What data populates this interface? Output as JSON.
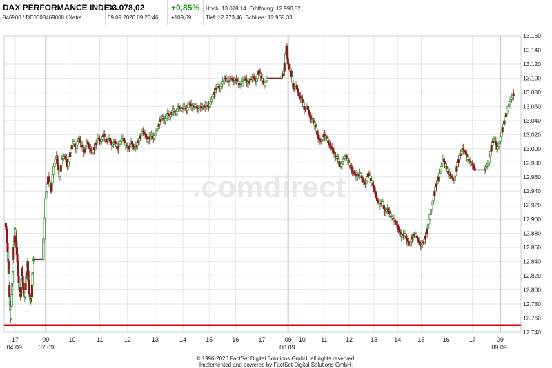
{
  "header": {
    "name": "DAX PERFORMANCE INDEX",
    "ids": "846900 / DE0008469008 / Xetra",
    "price": "13.078,02",
    "datetime": "09.09.2020 09:23:46",
    "change_pct": "+0,85%",
    "change_abs": "+109,69",
    "high_label": "Hoch:",
    "high": "13.078,14",
    "open_label": "Eröffnung:",
    "open": "12.990,52",
    "low_label": "Tief:",
    "low": "12.973,46",
    "close_label": "Schluss:",
    "close": "12.968,33"
  },
  "watermark": ".comdirect",
  "footer": {
    "line1": "© 1996-2020 FactSet Digital Solutions GmbH, all rights reserved.",
    "line2": "Implemented and powered by FactSet Digital Solutions GmbH."
  },
  "colors": {
    "up": "#2e8b2e",
    "down": "#8b1a1a",
    "baseline": "#e00000",
    "grid": "#e6e6e6",
    "watermark_light": "#f3e6b8",
    "watermark_dark": "#d8d8d8"
  },
  "chart_data": {
    "type": "candlestick",
    "ylim": [
      12740,
      13160
    ],
    "y_ticks": [
      12740,
      12760,
      12780,
      12800,
      12820,
      12840,
      12860,
      12880,
      12900,
      12920,
      12940,
      12960,
      12980,
      13000,
      13020,
      13040,
      13060,
      13080,
      13100,
      13120,
      13140,
      13160
    ],
    "y_tick_labels": [
      "12.740",
      "12.760",
      "12.780",
      "12.800",
      "12.820",
      "12.840",
      "12.860",
      "12.880",
      "12.900",
      "12.920",
      "12.940",
      "12.960",
      "12.980",
      "13.000",
      "13.020",
      "13.040",
      "13.060",
      "13.080",
      "13.100",
      "13.120",
      "13.140",
      "13.160"
    ],
    "x_ticks": [
      {
        "label": "17",
        "pos": 0.0
      },
      {
        "label": "09",
        "pos": 1.1
      },
      {
        "label": "10",
        "pos": 2.05
      },
      {
        "label": "11",
        "pos": 3.05
      },
      {
        "label": "12",
        "pos": 4.05
      },
      {
        "label": "13",
        "pos": 5.05
      },
      {
        "label": "14",
        "pos": 6.05
      },
      {
        "label": "15",
        "pos": 7.0
      },
      {
        "label": "16",
        "pos": 7.95
      },
      {
        "label": "17",
        "pos": 8.9
      },
      {
        "label": "09",
        "pos": 9.85
      },
      {
        "label": "10",
        "pos": 10.35
      },
      {
        "label": "11",
        "pos": 11.15
      },
      {
        "label": "12",
        "pos": 12.05
      },
      {
        "label": "13",
        "pos": 12.95
      },
      {
        "label": "14",
        "pos": 13.8
      },
      {
        "label": "15",
        "pos": 14.65
      },
      {
        "label": "16",
        "pos": 15.55
      },
      {
        "label": "17",
        "pos": 16.5
      },
      {
        "label": "09",
        "pos": 17.5
      }
    ],
    "date_labels": [
      {
        "label": "04.09.",
        "pos": 0.0
      },
      {
        "label": "07.09.",
        "pos": 1.15
      },
      {
        "label": "08.09.",
        "pos": 9.85
      },
      {
        "label": "09.09.",
        "pos": 17.5
      }
    ],
    "session_separators": [
      1.1,
      9.85,
      17.5
    ],
    "x_range": [
      -0.35,
      18.2
    ],
    "path": [
      [
        -0.35,
        12895
      ],
      [
        -0.3,
        12880
      ],
      [
        -0.25,
        12840
      ],
      [
        -0.2,
        12790
      ],
      [
        -0.15,
        12760
      ],
      [
        -0.1,
        12810
      ],
      [
        -0.05,
        12860
      ],
      [
        0.0,
        12885
      ],
      [
        0.05,
        12860
      ],
      [
        0.1,
        12830
      ],
      [
        0.15,
        12800
      ],
      [
        0.2,
        12790
      ],
      [
        0.25,
        12830
      ],
      [
        0.3,
        12800
      ],
      [
        0.35,
        12790
      ],
      [
        0.4,
        12820
      ],
      [
        0.45,
        12840
      ],
      [
        0.5,
        12800
      ],
      [
        0.55,
        12785
      ],
      [
        0.6,
        12790
      ],
      [
        0.65,
        12842
      ],
      [
        0.7,
        12843
      ],
      [
        0.8,
        12843
      ],
      [
        0.9,
        12843
      ],
      [
        1.0,
        12843
      ],
      [
        1.1,
        12930
      ],
      [
        1.2,
        12960
      ],
      [
        1.3,
        12940
      ],
      [
        1.4,
        12975
      ],
      [
        1.5,
        12990
      ],
      [
        1.6,
        12960
      ],
      [
        1.7,
        12985
      ],
      [
        1.8,
        12990
      ],
      [
        1.9,
        12975
      ],
      [
        2.0,
        12995
      ],
      [
        2.1,
        13010
      ],
      [
        2.2,
        13000
      ],
      [
        2.3,
        13015
      ],
      [
        2.4,
        13005
      ],
      [
        2.5,
        12995
      ],
      [
        2.6,
        13010
      ],
      [
        2.7,
        13000
      ],
      [
        2.8,
        12995
      ],
      [
        2.9,
        13005
      ],
      [
        3.0,
        13015
      ],
      [
        3.1,
        13010
      ],
      [
        3.2,
        13020
      ],
      [
        3.3,
        13010
      ],
      [
        3.4,
        13015
      ],
      [
        3.5,
        13005
      ],
      [
        3.6,
        13010
      ],
      [
        3.7,
        13000
      ],
      [
        3.8,
        13010
      ],
      [
        3.9,
        13015
      ],
      [
        4.0,
        13005
      ],
      [
        4.1,
        13000
      ],
      [
        4.2,
        13010
      ],
      [
        4.3,
        13000
      ],
      [
        4.4,
        13005
      ],
      [
        4.5,
        13015
      ],
      [
        4.6,
        13025
      ],
      [
        4.7,
        13020
      ],
      [
        4.8,
        13010
      ],
      [
        4.9,
        13020
      ],
      [
        5.0,
        13015
      ],
      [
        5.1,
        13025
      ],
      [
        5.2,
        13035
      ],
      [
        5.3,
        13045
      ],
      [
        5.4,
        13040
      ],
      [
        5.5,
        13050
      ],
      [
        5.6,
        13045
      ],
      [
        5.7,
        13055
      ],
      [
        5.8,
        13050
      ],
      [
        5.9,
        13060
      ],
      [
        6.0,
        13055
      ],
      [
        6.1,
        13060
      ],
      [
        6.2,
        13055
      ],
      [
        6.3,
        13065
      ],
      [
        6.4,
        13058
      ],
      [
        6.5,
        13062
      ],
      [
        6.6,
        13055
      ],
      [
        6.7,
        13060
      ],
      [
        6.8,
        13058
      ],
      [
        6.9,
        13062
      ],
      [
        7.0,
        13060
      ],
      [
        7.1,
        13070
      ],
      [
        7.2,
        13080
      ],
      [
        7.3,
        13090
      ],
      [
        7.4,
        13085
      ],
      [
        7.5,
        13095
      ],
      [
        7.6,
        13100
      ],
      [
        7.7,
        13095
      ],
      [
        7.8,
        13100
      ],
      [
        7.9,
        13095
      ],
      [
        8.0,
        13098
      ],
      [
        8.1,
        13090
      ],
      [
        8.2,
        13095
      ],
      [
        8.3,
        13100
      ],
      [
        8.4,
        13092
      ],
      [
        8.5,
        13098
      ],
      [
        8.6,
        13102
      ],
      [
        8.7,
        13095
      ],
      [
        8.8,
        13110
      ],
      [
        8.9,
        13100
      ],
      [
        9.0,
        13090
      ],
      [
        9.1,
        13100
      ],
      [
        9.2,
        13100
      ],
      [
        9.3,
        13100
      ],
      [
        9.4,
        13100
      ],
      [
        9.5,
        13100
      ],
      [
        9.6,
        13100
      ],
      [
        9.7,
        13110
      ],
      [
        9.8,
        13145
      ],
      [
        9.85,
        13120
      ],
      [
        9.95,
        13110
      ],
      [
        10.05,
        13085
      ],
      [
        10.15,
        13090
      ],
      [
        10.25,
        13075
      ],
      [
        10.35,
        13070
      ],
      [
        10.45,
        13055
      ],
      [
        10.55,
        13060
      ],
      [
        10.65,
        13045
      ],
      [
        10.75,
        13040
      ],
      [
        10.85,
        13030
      ],
      [
        10.95,
        13015
      ],
      [
        11.05,
        13010
      ],
      [
        11.15,
        13020
      ],
      [
        11.25,
        13015
      ],
      [
        11.35,
        13005
      ],
      [
        11.45,
        13000
      ],
      [
        11.55,
        12990
      ],
      [
        11.65,
        12985
      ],
      [
        11.75,
        12975
      ],
      [
        11.85,
        12985
      ],
      [
        11.95,
        12990
      ],
      [
        12.05,
        12980
      ],
      [
        12.15,
        12970
      ],
      [
        12.25,
        12965
      ],
      [
        12.35,
        12960
      ],
      [
        12.45,
        12965
      ],
      [
        12.55,
        12955
      ],
      [
        12.65,
        12950
      ],
      [
        12.75,
        12965
      ],
      [
        12.85,
        12955
      ],
      [
        12.95,
        12945
      ],
      [
        13.05,
        12930
      ],
      [
        13.15,
        12920
      ],
      [
        13.25,
        12925
      ],
      [
        13.35,
        12910
      ],
      [
        13.45,
        12915
      ],
      [
        13.55,
        12905
      ],
      [
        13.65,
        12900
      ],
      [
        13.75,
        12895
      ],
      [
        13.85,
        12885
      ],
      [
        13.95,
        12875
      ],
      [
        14.05,
        12880
      ],
      [
        14.15,
        12870
      ],
      [
        14.25,
        12865
      ],
      [
        14.35,
        12875
      ],
      [
        14.45,
        12880
      ],
      [
        14.55,
        12870
      ],
      [
        14.65,
        12862
      ],
      [
        14.75,
        12868
      ],
      [
        14.85,
        12880
      ],
      [
        14.95,
        12900
      ],
      [
        15.05,
        12920
      ],
      [
        15.15,
        12940
      ],
      [
        15.25,
        12955
      ],
      [
        15.35,
        12970
      ],
      [
        15.45,
        12985
      ],
      [
        15.55,
        12975
      ],
      [
        15.65,
        12965
      ],
      [
        15.75,
        12960
      ],
      [
        15.85,
        12955
      ],
      [
        15.95,
        12975
      ],
      [
        16.05,
        12990
      ],
      [
        16.15,
        13000
      ],
      [
        16.25,
        12995
      ],
      [
        16.35,
        12985
      ],
      [
        16.45,
        12980
      ],
      [
        16.55,
        12975
      ],
      [
        16.6,
        12970
      ],
      [
        16.8,
        12970
      ],
      [
        16.95,
        12970
      ],
      [
        17.0,
        12975
      ],
      [
        17.1,
        12980
      ],
      [
        17.2,
        13005
      ],
      [
        17.3,
        13015
      ],
      [
        17.4,
        13000
      ],
      [
        17.5,
        13010
      ],
      [
        17.6,
        13030
      ],
      [
        17.7,
        13045
      ],
      [
        17.8,
        13060
      ],
      [
        17.9,
        13070
      ],
      [
        18.0,
        13078
      ]
    ],
    "reference_line": 12750,
    "last_value": 13078.02
  }
}
